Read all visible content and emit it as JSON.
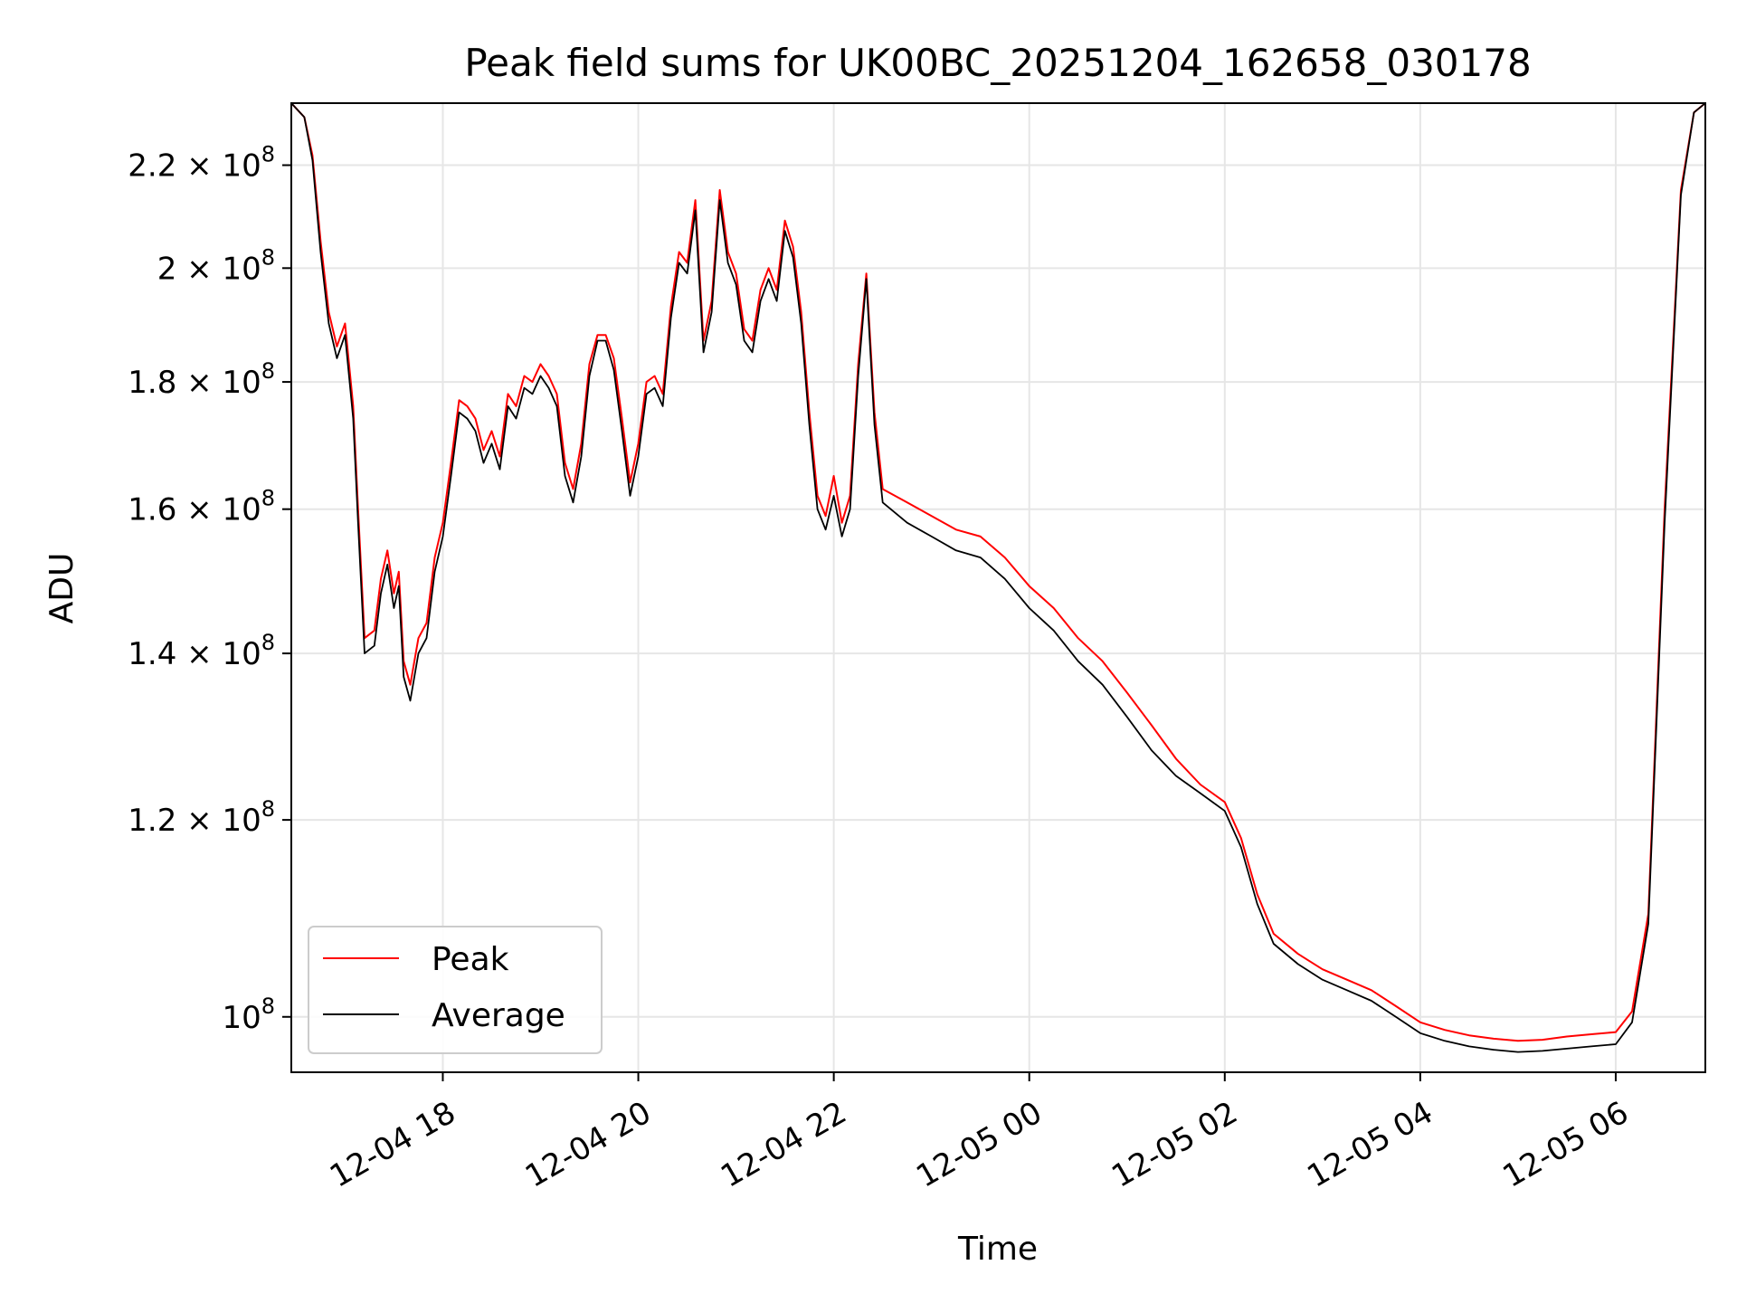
{
  "chart_data": {
    "type": "line",
    "title": "Peak field sums for UK00BC_20251204_162658_030178",
    "xlabel": "Time",
    "ylabel": "ADU",
    "y_scale": "log",
    "ylim": [
      95000000,
      233000000
    ],
    "xlim": [
      "2025-12-04 16:27",
      "2025-12-05 06:55"
    ],
    "grid": true,
    "legend_position": "lower-left",
    "x_ticks": [
      {
        "label": "12-04 18",
        "value": "2025-12-04 18:00"
      },
      {
        "label": "12-04 20",
        "value": "2025-12-04 20:00"
      },
      {
        "label": "12-04 22",
        "value": "2025-12-04 22:00"
      },
      {
        "label": "12-05 00",
        "value": "2025-12-05 00:00"
      },
      {
        "label": "12-05 02",
        "value": "2025-12-05 02:00"
      },
      {
        "label": "12-05 04",
        "value": "2025-12-05 04:00"
      },
      {
        "label": "12-05 06",
        "value": "2025-12-05 06:00"
      }
    ],
    "y_ticks": [
      {
        "mantissa": "",
        "exponent": "8",
        "value": 100000000
      },
      {
        "mantissa": "1.2",
        "exponent": "8",
        "value": 120000000
      },
      {
        "mantissa": "1.4",
        "exponent": "8",
        "value": 140000000
      },
      {
        "mantissa": "1.6",
        "exponent": "8",
        "value": 160000000
      },
      {
        "mantissa": "1.8",
        "exponent": "8",
        "value": 180000000
      },
      {
        "mantissa": "2",
        "exponent": "8",
        "value": 200000000
      },
      {
        "mantissa": "2.2",
        "exponent": "8",
        "value": 220000000
      }
    ],
    "series": [
      {
        "name": "Peak",
        "color": "#ff0000",
        "points": [
          [
            "2025-12-04 16:27",
            233000000
          ],
          [
            "2025-12-04 16:35",
            230000000
          ],
          [
            "2025-12-04 16:40",
            222000000
          ],
          [
            "2025-12-04 16:45",
            205000000
          ],
          [
            "2025-12-04 16:50",
            192000000
          ],
          [
            "2025-12-04 16:55",
            186000000
          ],
          [
            "2025-12-04 17:00",
            190000000
          ],
          [
            "2025-12-04 17:05",
            176000000
          ],
          [
            "2025-12-04 17:08",
            160000000
          ],
          [
            "2025-12-04 17:12",
            142000000
          ],
          [
            "2025-12-04 17:18",
            143000000
          ],
          [
            "2025-12-04 17:22",
            150000000
          ],
          [
            "2025-12-04 17:26",
            154000000
          ],
          [
            "2025-12-04 17:30",
            148000000
          ],
          [
            "2025-12-04 17:33",
            151000000
          ],
          [
            "2025-12-04 17:36",
            139000000
          ],
          [
            "2025-12-04 17:40",
            136000000
          ],
          [
            "2025-12-04 17:45",
            142000000
          ],
          [
            "2025-12-04 17:50",
            144000000
          ],
          [
            "2025-12-04 17:55",
            153000000
          ],
          [
            "2025-12-04 18:00",
            158000000
          ],
          [
            "2025-12-04 18:05",
            167000000
          ],
          [
            "2025-12-04 18:10",
            177000000
          ],
          [
            "2025-12-04 18:15",
            176000000
          ],
          [
            "2025-12-04 18:20",
            174000000
          ],
          [
            "2025-12-04 18:25",
            169000000
          ],
          [
            "2025-12-04 18:30",
            172000000
          ],
          [
            "2025-12-04 18:35",
            168000000
          ],
          [
            "2025-12-04 18:40",
            178000000
          ],
          [
            "2025-12-04 18:45",
            176000000
          ],
          [
            "2025-12-04 18:50",
            181000000
          ],
          [
            "2025-12-04 18:55",
            180000000
          ],
          [
            "2025-12-04 19:00",
            183000000
          ],
          [
            "2025-12-04 19:05",
            181000000
          ],
          [
            "2025-12-04 19:10",
            178000000
          ],
          [
            "2025-12-04 19:15",
            167000000
          ],
          [
            "2025-12-04 19:20",
            163000000
          ],
          [
            "2025-12-04 19:25",
            170000000
          ],
          [
            "2025-12-04 19:30",
            183000000
          ],
          [
            "2025-12-04 19:35",
            188000000
          ],
          [
            "2025-12-04 19:40",
            188000000
          ],
          [
            "2025-12-04 19:45",
            184000000
          ],
          [
            "2025-12-04 19:50",
            174000000
          ],
          [
            "2025-12-04 19:55",
            164000000
          ],
          [
            "2025-12-04 20:00",
            170000000
          ],
          [
            "2025-12-04 20:05",
            180000000
          ],
          [
            "2025-12-04 20:10",
            181000000
          ],
          [
            "2025-12-04 20:15",
            178000000
          ],
          [
            "2025-12-04 20:20",
            193000000
          ],
          [
            "2025-12-04 20:25",
            203000000
          ],
          [
            "2025-12-04 20:30",
            201000000
          ],
          [
            "2025-12-04 20:35",
            213000000
          ],
          [
            "2025-12-04 20:40",
            187000000
          ],
          [
            "2025-12-04 20:45",
            194000000
          ],
          [
            "2025-12-04 20:50",
            215000000
          ],
          [
            "2025-12-04 20:55",
            203000000
          ],
          [
            "2025-12-04 21:00",
            199000000
          ],
          [
            "2025-12-04 21:05",
            189000000
          ],
          [
            "2025-12-04 21:10",
            187000000
          ],
          [
            "2025-12-04 21:15",
            196000000
          ],
          [
            "2025-12-04 21:20",
            200000000
          ],
          [
            "2025-12-04 21:25",
            196000000
          ],
          [
            "2025-12-04 21:30",
            209000000
          ],
          [
            "2025-12-04 21:35",
            204000000
          ],
          [
            "2025-12-04 21:40",
            192000000
          ],
          [
            "2025-12-04 21:45",
            175000000
          ],
          [
            "2025-12-04 21:50",
            162000000
          ],
          [
            "2025-12-04 21:55",
            159000000
          ],
          [
            "2025-12-04 22:00",
            165000000
          ],
          [
            "2025-12-04 22:05",
            158000000
          ],
          [
            "2025-12-04 22:10",
            162000000
          ],
          [
            "2025-12-04 22:15",
            183000000
          ],
          [
            "2025-12-04 22:20",
            199000000
          ],
          [
            "2025-12-04 22:25",
            175000000
          ],
          [
            "2025-12-04 22:30",
            163000000
          ],
          [
            "2025-12-04 22:45",
            161000000
          ],
          [
            "2025-12-04 23:00",
            159000000
          ],
          [
            "2025-12-04 23:15",
            157000000
          ],
          [
            "2025-12-04 23:30",
            156000000
          ],
          [
            "2025-12-04 23:45",
            153000000
          ],
          [
            "2025-12-05 00:00",
            149000000
          ],
          [
            "2025-12-05 00:15",
            146000000
          ],
          [
            "2025-12-05 00:30",
            142000000
          ],
          [
            "2025-12-05 00:45",
            139000000
          ],
          [
            "2025-12-05 01:00",
            135000000
          ],
          [
            "2025-12-05 01:15",
            131000000
          ],
          [
            "2025-12-05 01:30",
            127000000
          ],
          [
            "2025-12-05 01:45",
            124000000
          ],
          [
            "2025-12-05 02:00",
            122000000
          ],
          [
            "2025-12-05 02:10",
            118000000
          ],
          [
            "2025-12-05 02:20",
            112000000
          ],
          [
            "2025-12-05 02:30",
            108000000
          ],
          [
            "2025-12-05 02:45",
            106000000
          ],
          [
            "2025-12-05 03:00",
            104500000
          ],
          [
            "2025-12-05 03:15",
            103500000
          ],
          [
            "2025-12-05 03:30",
            102500000
          ],
          [
            "2025-12-05 03:45",
            101000000
          ],
          [
            "2025-12-05 04:00",
            99500000
          ],
          [
            "2025-12-05 04:15",
            98800000
          ],
          [
            "2025-12-05 04:30",
            98300000
          ],
          [
            "2025-12-05 04:45",
            98000000
          ],
          [
            "2025-12-05 05:00",
            97800000
          ],
          [
            "2025-12-05 05:15",
            97900000
          ],
          [
            "2025-12-05 05:30",
            98200000
          ],
          [
            "2025-12-05 05:45",
            98400000
          ],
          [
            "2025-12-05 06:00",
            98600000
          ],
          [
            "2025-12-05 06:10",
            100500000
          ],
          [
            "2025-12-05 06:20",
            110000000
          ],
          [
            "2025-12-05 06:30",
            160000000
          ],
          [
            "2025-12-05 06:40",
            215000000
          ],
          [
            "2025-12-05 06:48",
            231000000
          ],
          [
            "2025-12-05 06:55",
            233000000
          ]
        ]
      },
      {
        "name": "Average",
        "color": "#000000",
        "points": [
          [
            "2025-12-04 16:27",
            233000000
          ],
          [
            "2025-12-04 16:35",
            230000000
          ],
          [
            "2025-12-04 16:40",
            221000000
          ],
          [
            "2025-12-04 16:45",
            203000000
          ],
          [
            "2025-12-04 16:50",
            190000000
          ],
          [
            "2025-12-04 16:55",
            184000000
          ],
          [
            "2025-12-04 17:00",
            188000000
          ],
          [
            "2025-12-04 17:05",
            174000000
          ],
          [
            "2025-12-04 17:08",
            158000000
          ],
          [
            "2025-12-04 17:12",
            140000000
          ],
          [
            "2025-12-04 17:18",
            141000000
          ],
          [
            "2025-12-04 17:22",
            148000000
          ],
          [
            "2025-12-04 17:26",
            152000000
          ],
          [
            "2025-12-04 17:30",
            146000000
          ],
          [
            "2025-12-04 17:33",
            149000000
          ],
          [
            "2025-12-04 17:36",
            137000000
          ],
          [
            "2025-12-04 17:40",
            134000000
          ],
          [
            "2025-12-04 17:45",
            140000000
          ],
          [
            "2025-12-04 17:50",
            142000000
          ],
          [
            "2025-12-04 17:55",
            151000000
          ],
          [
            "2025-12-04 18:00",
            156000000
          ],
          [
            "2025-12-04 18:05",
            165000000
          ],
          [
            "2025-12-04 18:10",
            175000000
          ],
          [
            "2025-12-04 18:15",
            174000000
          ],
          [
            "2025-12-04 18:20",
            172000000
          ],
          [
            "2025-12-04 18:25",
            167000000
          ],
          [
            "2025-12-04 18:30",
            170000000
          ],
          [
            "2025-12-04 18:35",
            166000000
          ],
          [
            "2025-12-04 18:40",
            176000000
          ],
          [
            "2025-12-04 18:45",
            174000000
          ],
          [
            "2025-12-04 18:50",
            179000000
          ],
          [
            "2025-12-04 18:55",
            178000000
          ],
          [
            "2025-12-04 19:00",
            181000000
          ],
          [
            "2025-12-04 19:05",
            179000000
          ],
          [
            "2025-12-04 19:10",
            176000000
          ],
          [
            "2025-12-04 19:15",
            165000000
          ],
          [
            "2025-12-04 19:20",
            161000000
          ],
          [
            "2025-12-04 19:25",
            168000000
          ],
          [
            "2025-12-04 19:30",
            181000000
          ],
          [
            "2025-12-04 19:35",
            187000000
          ],
          [
            "2025-12-04 19:40",
            187000000
          ],
          [
            "2025-12-04 19:45",
            182000000
          ],
          [
            "2025-12-04 19:50",
            172000000
          ],
          [
            "2025-12-04 19:55",
            162000000
          ],
          [
            "2025-12-04 20:00",
            168000000
          ],
          [
            "2025-12-04 20:05",
            178000000
          ],
          [
            "2025-12-04 20:10",
            179000000
          ],
          [
            "2025-12-04 20:15",
            176000000
          ],
          [
            "2025-12-04 20:20",
            191000000
          ],
          [
            "2025-12-04 20:25",
            201000000
          ],
          [
            "2025-12-04 20:30",
            199000000
          ],
          [
            "2025-12-04 20:35",
            211000000
          ],
          [
            "2025-12-04 20:40",
            185000000
          ],
          [
            "2025-12-04 20:45",
            192000000
          ],
          [
            "2025-12-04 20:50",
            213000000
          ],
          [
            "2025-12-04 20:55",
            201000000
          ],
          [
            "2025-12-04 21:00",
            197000000
          ],
          [
            "2025-12-04 21:05",
            187000000
          ],
          [
            "2025-12-04 21:10",
            185000000
          ],
          [
            "2025-12-04 21:15",
            194000000
          ],
          [
            "2025-12-04 21:20",
            198000000
          ],
          [
            "2025-12-04 21:25",
            194000000
          ],
          [
            "2025-12-04 21:30",
            207000000
          ],
          [
            "2025-12-04 21:35",
            202000000
          ],
          [
            "2025-12-04 21:40",
            190000000
          ],
          [
            "2025-12-04 21:45",
            173000000
          ],
          [
            "2025-12-04 21:50",
            160000000
          ],
          [
            "2025-12-04 21:55",
            157000000
          ],
          [
            "2025-12-04 22:00",
            162000000
          ],
          [
            "2025-12-04 22:05",
            156000000
          ],
          [
            "2025-12-04 22:10",
            160000000
          ],
          [
            "2025-12-04 22:15",
            181000000
          ],
          [
            "2025-12-04 22:20",
            198000000
          ],
          [
            "2025-12-04 22:25",
            173000000
          ],
          [
            "2025-12-04 22:30",
            161000000
          ],
          [
            "2025-12-04 22:45",
            158000000
          ],
          [
            "2025-12-04 23:00",
            156000000
          ],
          [
            "2025-12-04 23:15",
            154000000
          ],
          [
            "2025-12-04 23:30",
            153000000
          ],
          [
            "2025-12-04 23:45",
            150000000
          ],
          [
            "2025-12-05 00:00",
            146000000
          ],
          [
            "2025-12-05 00:15",
            143000000
          ],
          [
            "2025-12-05 00:30",
            139000000
          ],
          [
            "2025-12-05 00:45",
            136000000
          ],
          [
            "2025-12-05 01:00",
            132000000
          ],
          [
            "2025-12-05 01:15",
            128000000
          ],
          [
            "2025-12-05 01:30",
            125000000
          ],
          [
            "2025-12-05 01:45",
            123000000
          ],
          [
            "2025-12-05 02:00",
            121000000
          ],
          [
            "2025-12-05 02:10",
            117000000
          ],
          [
            "2025-12-05 02:20",
            111000000
          ],
          [
            "2025-12-05 02:30",
            107000000
          ],
          [
            "2025-12-05 02:45",
            105000000
          ],
          [
            "2025-12-05 03:00",
            103500000
          ],
          [
            "2025-12-05 03:15",
            102500000
          ],
          [
            "2025-12-05 03:30",
            101500000
          ],
          [
            "2025-12-05 03:45",
            100000000
          ],
          [
            "2025-12-05 04:00",
            98500000
          ],
          [
            "2025-12-05 04:15",
            97800000
          ],
          [
            "2025-12-05 04:30",
            97300000
          ],
          [
            "2025-12-05 04:45",
            97000000
          ],
          [
            "2025-12-05 05:00",
            96800000
          ],
          [
            "2025-12-05 05:15",
            96900000
          ],
          [
            "2025-12-05 05:30",
            97100000
          ],
          [
            "2025-12-05 05:45",
            97300000
          ],
          [
            "2025-12-05 06:00",
            97500000
          ],
          [
            "2025-12-05 06:10",
            99500000
          ],
          [
            "2025-12-05 06:20",
            109000000
          ],
          [
            "2025-12-05 06:30",
            158000000
          ],
          [
            "2025-12-05 06:40",
            214000000
          ],
          [
            "2025-12-05 06:48",
            231000000
          ],
          [
            "2025-12-05 06:55",
            233000000
          ]
        ]
      }
    ]
  }
}
